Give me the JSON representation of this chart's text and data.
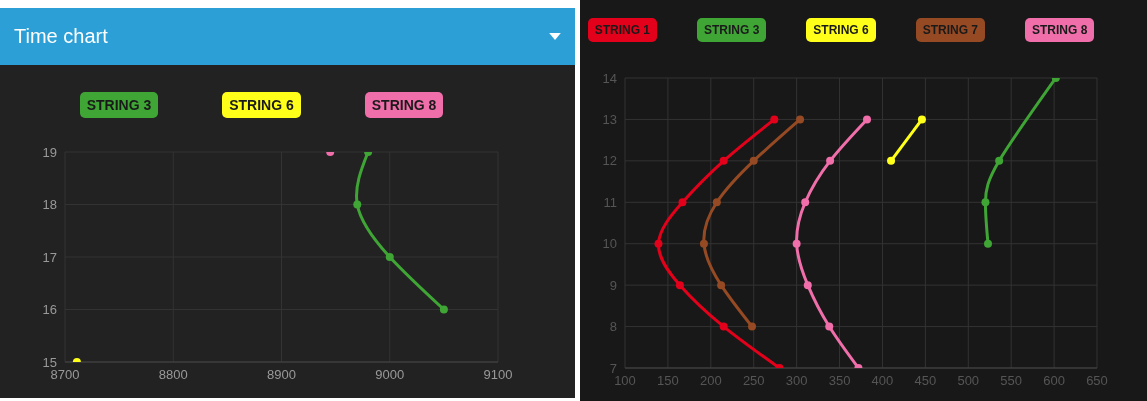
{
  "chart_data": [
    {
      "type": "line",
      "title": "Time chart",
      "legend": "top",
      "grid": true,
      "marker": "circle",
      "xlim": [
        8700,
        9100
      ],
      "xticks": [
        8700,
        8800,
        8900,
        9000,
        9100
      ],
      "ylim": [
        15,
        19
      ],
      "yticks": [
        15,
        16,
        17,
        18,
        19
      ],
      "series": [
        {
          "name": "STRING 3",
          "color": "#3fa535",
          "x": [
            8980,
            8970,
            9000,
            9050
          ],
          "values": [
            19,
            18,
            17,
            16
          ]
        },
        {
          "name": "STRING 6",
          "color": "#ffff1a",
          "x": [
            8711
          ],
          "values": [
            15
          ]
        },
        {
          "name": "STRING 8",
          "color": "#f06eaa",
          "x": [
            8945
          ],
          "values": [
            19
          ]
        }
      ]
    },
    {
      "type": "line",
      "legend": "top",
      "grid": true,
      "marker": "circle",
      "xlim": [
        100,
        650
      ],
      "xticks": [
        100,
        150,
        200,
        250,
        300,
        350,
        400,
        450,
        500,
        550,
        600,
        650
      ],
      "ylim": [
        7,
        14
      ],
      "yticks": [
        7,
        8,
        9,
        10,
        11,
        12,
        13,
        14
      ],
      "series": [
        {
          "name": "STRING 1",
          "color": "#e3001b",
          "x": [
            274,
            215,
            167,
            139,
            164,
            215,
            280
          ],
          "values": [
            13,
            12,
            11,
            10,
            9,
            8,
            7
          ]
        },
        {
          "name": "STRING 3",
          "color": "#3fa535",
          "x": [
            523,
            520,
            536,
            602
          ],
          "values": [
            10,
            11,
            12,
            14
          ]
        },
        {
          "name": "STRING 6",
          "color": "#ffff1a",
          "x": [
            410,
            446
          ],
          "values": [
            12,
            13
          ]
        },
        {
          "name": "STRING 7",
          "color": "#954a23",
          "x": [
            304,
            250,
            207,
            192,
            212,
            248
          ],
          "values": [
            13,
            12,
            11,
            10,
            9,
            8
          ]
        },
        {
          "name": "STRING 8",
          "color": "#f06eaa",
          "x": [
            382,
            339,
            310,
            300,
            313,
            338,
            372
          ],
          "values": [
            13,
            12,
            11,
            10,
            9,
            8,
            7
          ]
        }
      ]
    }
  ]
}
